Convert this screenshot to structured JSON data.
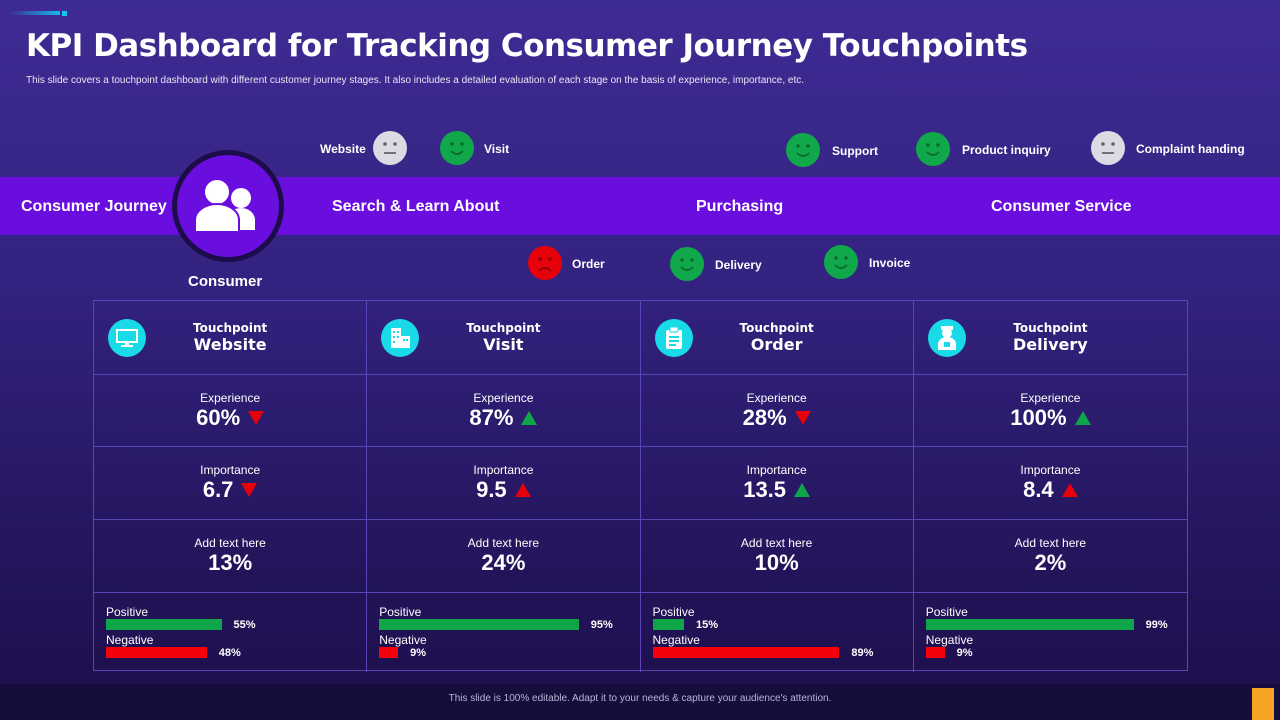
{
  "title": "KPI Dashboard for Tracking Consumer Journey Touchpoints",
  "subtitle": "This slide covers a touchpoint dashboard with different customer journey stages. It also includes a detailed evaluation of each stage on the basis of experience, importance, etc.",
  "band": {
    "label": "Consumer Journey",
    "stages": [
      "Search & Learn About",
      "Purchasing",
      "Consumer Service"
    ],
    "color": "#6a0ee0"
  },
  "consumer": "Consumer",
  "sentiments": [
    {
      "label": "Website",
      "mood": "neutral"
    },
    {
      "label": "Visit",
      "mood": "happy"
    },
    {
      "label": "Support",
      "mood": "happy"
    },
    {
      "label": "Product inquiry",
      "mood": "happy"
    },
    {
      "label": "Complaint handing",
      "mood": "neutral"
    },
    {
      "label": "Order",
      "mood": "sad"
    },
    {
      "label": "Delivery",
      "mood": "happy"
    },
    {
      "label": "Invoice",
      "mood": "happy"
    }
  ],
  "touchpoints": [
    {
      "heading": "Touchpoint",
      "name": "Website",
      "icon": "monitor-icon",
      "exp_label": "Experience",
      "experience": "60%",
      "exp_trend": "down",
      "imp_label": "Importance",
      "importance": "6.7",
      "imp_trend": "down",
      "imp_color": "#e8000b",
      "extra_label": "Add text here",
      "extra": "13%",
      "pos_label": "Positive",
      "positive": 55,
      "positive_text": "55%",
      "neg_label": "Negative",
      "negative": 48,
      "negative_text": "48%"
    },
    {
      "heading": "Touchpoint",
      "name": "Visit",
      "icon": "building-icon",
      "exp_label": "Experience",
      "experience": "87%",
      "exp_trend": "up",
      "exp_color": "#0fa64a",
      "imp_label": "Importance",
      "importance": "9.5",
      "imp_trend": "up",
      "imp_color": "#e8000b",
      "extra_label": "Add text here",
      "extra": "24%",
      "pos_label": "Positive",
      "positive": 95,
      "positive_text": "95%",
      "neg_label": "Negative",
      "negative": 9,
      "negative_text": "9%"
    },
    {
      "heading": "Touchpoint",
      "name": "Order",
      "icon": "clipboard-icon",
      "exp_label": "Experience",
      "experience": "28%",
      "exp_trend": "down",
      "imp_label": "Importance",
      "importance": "13.5",
      "imp_trend": "up",
      "imp_color": "#0fa64a",
      "extra_label": "Add text here",
      "extra": "10%",
      "pos_label": "Positive",
      "positive": 15,
      "positive_text": "15%",
      "neg_label": "Negative",
      "negative": 89,
      "negative_text": "89%"
    },
    {
      "heading": "Touchpoint",
      "name": "Delivery",
      "icon": "delivery-person-icon",
      "exp_label": "Experience",
      "experience": "100%",
      "exp_trend": "up",
      "exp_color": "#0fa64a",
      "imp_label": "Importance",
      "importance": "8.4",
      "imp_trend": "up",
      "imp_color": "#e8000b",
      "extra_label": "Add text here",
      "extra": "2%",
      "pos_label": "Positive",
      "positive": 99,
      "positive_text": "99%",
      "neg_label": "Negative",
      "negative": 9,
      "negative_text": "9%"
    }
  ],
  "colors": {
    "positive": "#0fa64a",
    "negative": "#f5000b",
    "happy": "#10a84a",
    "neutral": "#dcdbe4",
    "sad": "#e8000b",
    "icon_bg": "#19dbe8"
  },
  "footer": "This slide is 100% editable. Adapt it to your needs & capture your audience's attention."
}
